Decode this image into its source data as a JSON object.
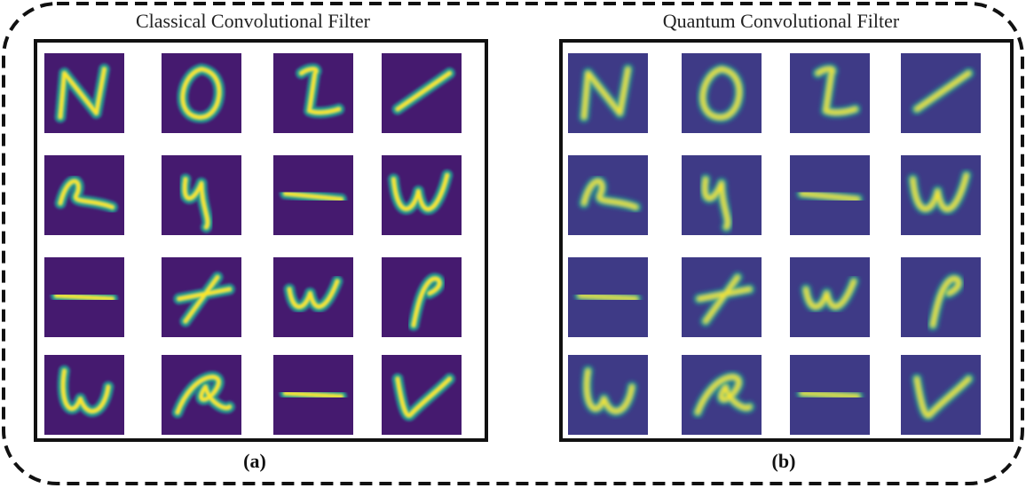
{
  "panels": [
    {
      "title": "Classical Convolutional Filter",
      "label": "(a)"
    },
    {
      "title": "Quantum Convolutional Filter",
      "label": "(b)"
    }
  ]
}
